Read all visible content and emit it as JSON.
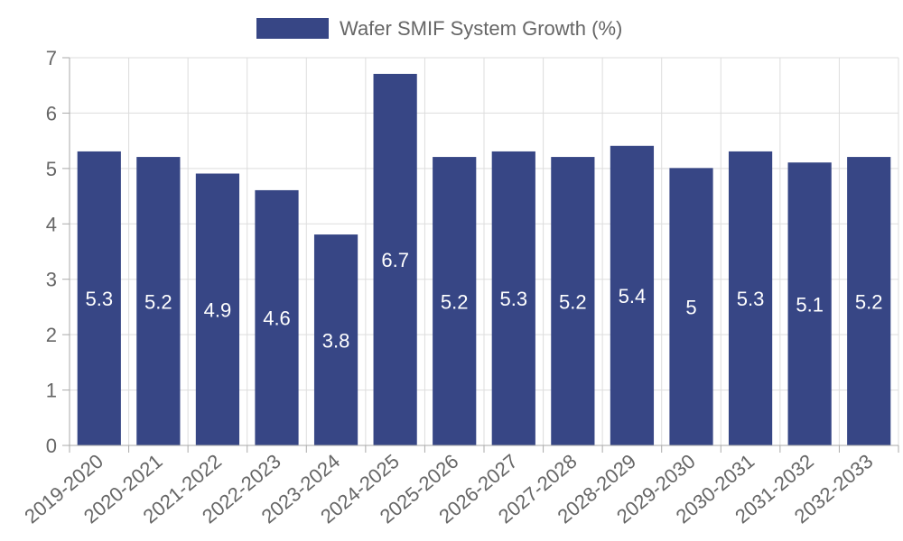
{
  "chart_data": {
    "type": "bar",
    "categories": [
      "2019-2020",
      "2020-2021",
      "2021-2022",
      "2022-2023",
      "2023-2024",
      "2024-2025",
      "2025-2026",
      "2026-2027",
      "2027-2028",
      "2028-2029",
      "2029-2030",
      "2030-2031",
      "2031-2032",
      "2032-2033"
    ],
    "series": [
      {
        "name": "Wafer SMIF System Growth (%)",
        "values": [
          5.3,
          5.2,
          4.9,
          4.6,
          3.8,
          6.7,
          5.2,
          5.3,
          5.2,
          5.4,
          5,
          5.3,
          5.1,
          5.2
        ]
      }
    ],
    "data_labels": [
      "5.3",
      "5.2",
      "4.9",
      "4.6",
      "3.8",
      "6.7",
      "5.2",
      "5.3",
      "5.2",
      "5.4",
      "5",
      "5.3",
      "5.1",
      "5.2"
    ],
    "y_ticks": [
      "0",
      "1",
      "2",
      "3",
      "4",
      "5",
      "6",
      "7"
    ],
    "ylim": [
      0,
      7
    ],
    "legend_position": "top-center",
    "grid": true,
    "colors": {
      "bar_fill": "#374685",
      "bar_stroke": "#374685",
      "grid": "#dddddd",
      "axis": "#aaaaaa",
      "text": "#666666",
      "data_label": "#ffffff"
    }
  }
}
